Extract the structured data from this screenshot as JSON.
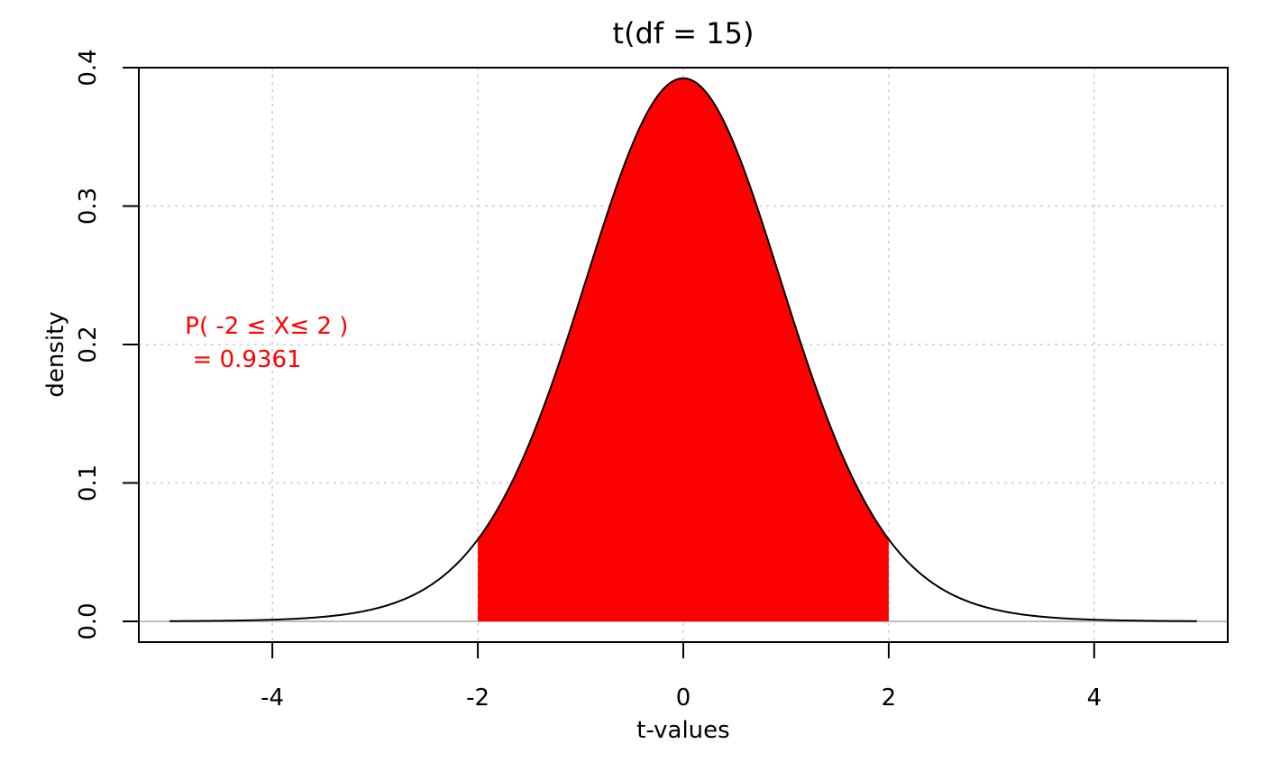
{
  "chart_data": {
    "type": "area",
    "title": "t(df = 15)",
    "xlabel": "t-values",
    "ylabel": "density",
    "df": 15,
    "xlim": [
      -5.3,
      5.3
    ],
    "ylim": [
      -0.015,
      0.4
    ],
    "x_range": [
      -5,
      5
    ],
    "x_ticks": [
      -4,
      -2,
      0,
      2,
      4
    ],
    "x_tick_labels": [
      "-4",
      "-2",
      "0",
      "2",
      "4"
    ],
    "y_ticks": [
      0.0,
      0.1,
      0.2,
      0.3,
      0.4
    ],
    "y_tick_labels": [
      "0.0",
      "0.1",
      "0.2",
      "0.3",
      "0.4"
    ],
    "grid": true,
    "shaded_region": [
      -2,
      2
    ],
    "annotation": {
      "line1": "P( -2 ≤ X≤ 2 )",
      "line2": " = 0.9361",
      "x": -4.85,
      "y": 0.2
    },
    "colors": {
      "curve": "#000000",
      "fill": "#ff0000",
      "annotation": "#ff0000",
      "grid": "#cccccc",
      "baseline": "#bebebe"
    }
  }
}
